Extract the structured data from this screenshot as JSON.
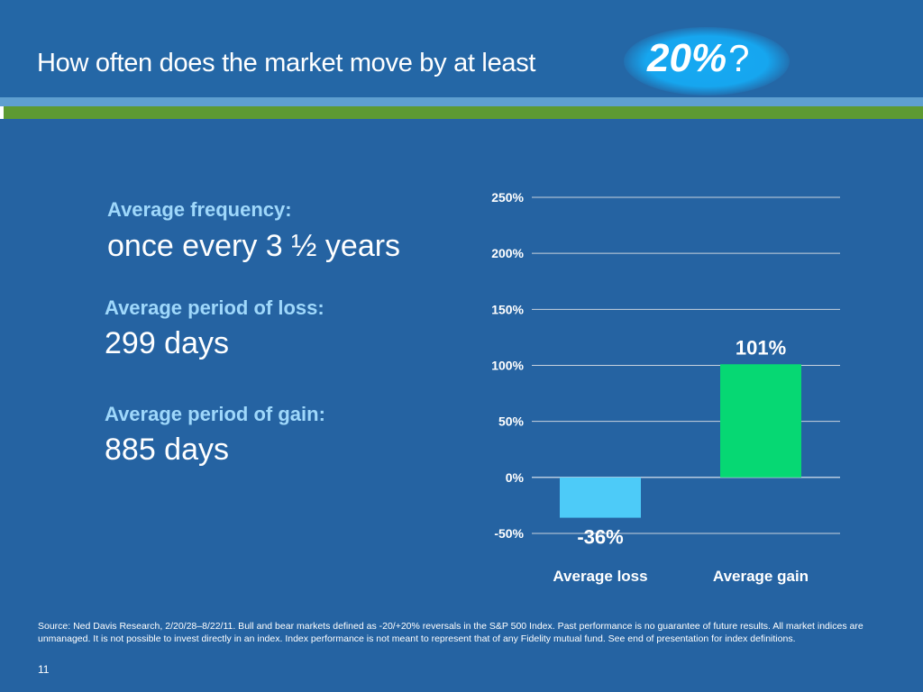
{
  "slide": {
    "title": "How often does the market move by at least",
    "highlight_value": "20%",
    "highlight_suffix": "?",
    "page_number": "11"
  },
  "stats": {
    "frequency_label": "Average frequency:",
    "frequency_value": "once every 3 ½ years",
    "loss_label": "Average period of loss:",
    "loss_value": "299 days",
    "gain_label": "Average period of gain:",
    "gain_value": "885 days"
  },
  "chart_data": {
    "type": "bar",
    "categories": [
      "Average loss",
      "Average gain"
    ],
    "values": [
      -36,
      101
    ],
    "data_labels": [
      "-36%",
      "101%"
    ],
    "bar_colors": [
      "#4dcbf8",
      "#06d873"
    ],
    "ylim": [
      -50,
      250
    ],
    "yticks": [
      250,
      200,
      150,
      100,
      50,
      0,
      -50
    ],
    "ytick_labels": [
      "250%",
      "200%",
      "150%",
      "100%",
      "50%",
      "0%",
      "-50%"
    ],
    "grid": true,
    "title": "",
    "xlabel": "",
    "ylabel": ""
  },
  "footnote": {
    "text": "Source: Ned Davis Research, 2/20/28–8/22/11. Bull and bear markets defined as -20/+20% reversals in the S&P 500 Index. Past performance is no guarantee of future results. All market indices are unmanaged. It is not possible to invest directly in an index. Index performance is not meant to represent that of any Fidelity mutual fund. See end of presentation for index definitions."
  },
  "colors": {
    "background": "#2563a2",
    "label_blue": "#9fd8fb",
    "accent_green": "#5d9a32",
    "highlight_blue": "#16a6ef"
  }
}
